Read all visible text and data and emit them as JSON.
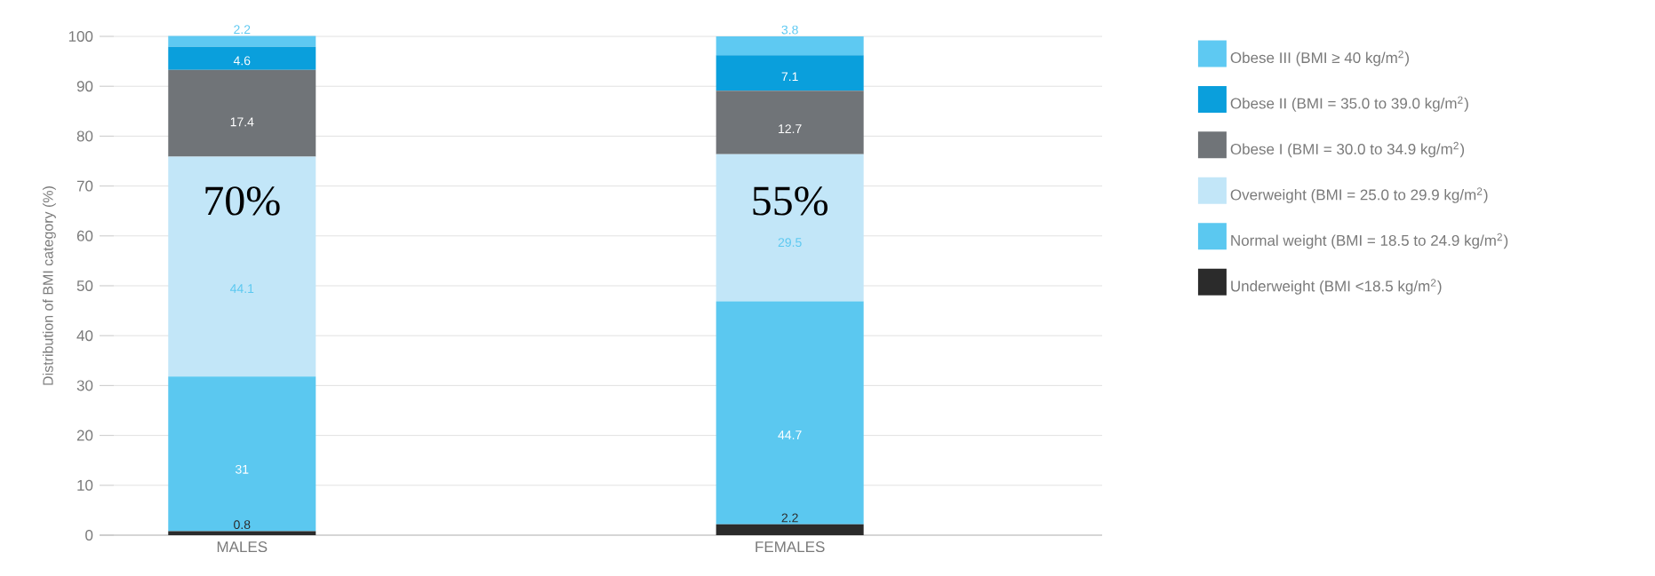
{
  "chart_data": {
    "type": "bar",
    "stacked": true,
    "ylabel": "Distribution of BMI category (%)",
    "categories": [
      "MALES",
      "FEMALES"
    ],
    "series": [
      {
        "name": "Underweight (BMI <18.5 kg/m$^{2}$)",
        "color": "#2b2b2b",
        "values": [
          0.8,
          2.2
        ]
      },
      {
        "name": "Normal weight (BMI = 18.5 to 24.9 kg/m$^{2}$)",
        "color": "#5bc8f0",
        "values": [
          31,
          44.7
        ]
      },
      {
        "name": "Overweight (BMI = 25.0 to 29.9 kg/m$^{2}$)",
        "color": "#c2e6f8",
        "values": [
          44.1,
          29.5
        ]
      },
      {
        "name": "Obese I (BMI = 30.0 to 34.9 kg/m$^{2}$)",
        "color": "#707478",
        "values": [
          17.4,
          12.7
        ]
      },
      {
        "name": "Obese II (BMI = 35.0 to 39.0 kg/m$^{2}$)",
        "color": "#0a9fdc",
        "values": [
          4.6,
          7.1
        ]
      },
      {
        "name": "Obese III (BMI ≥ 40 kg/m$^{2}$)",
        "color": "#5ec9f2",
        "values": [
          2.2,
          3.8
        ]
      }
    ],
    "ylim": [
      0,
      100
    ],
    "yticks": [
      0,
      10,
      20,
      30,
      40,
      50,
      60,
      70,
      80,
      90,
      100
    ],
    "grid": "y",
    "legend": "right",
    "data_labels": true,
    "annotations": [
      "70%",
      "55%"
    ]
  }
}
